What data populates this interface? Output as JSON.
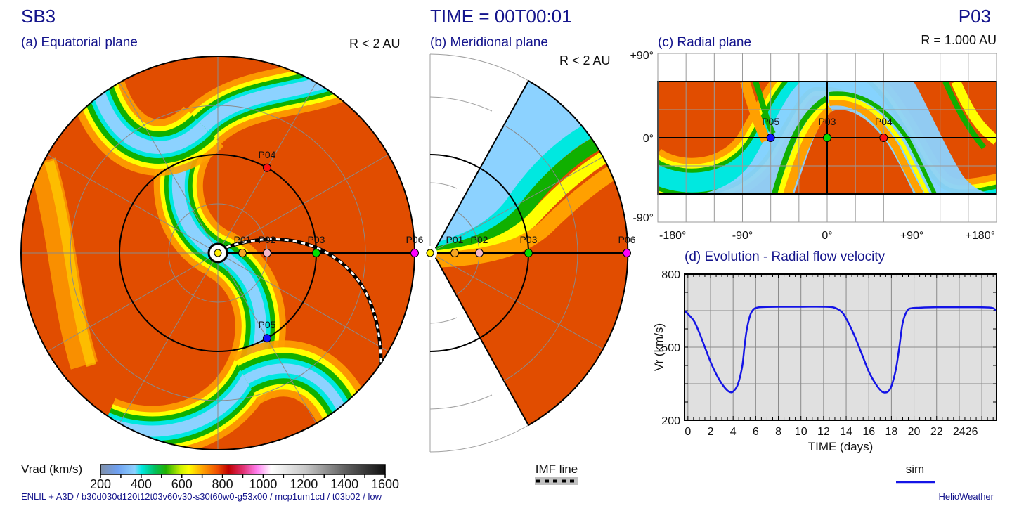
{
  "header": {
    "run_name": "SB3",
    "time_label": "TIME = 00T00:01",
    "probe_name": "P03"
  },
  "panels": {
    "a": {
      "title": "(a) Equatorial plane",
      "range": "R < 2 AU"
    },
    "b": {
      "title": "(b) Meridional plane",
      "range": "R < 2 AU"
    },
    "c": {
      "title": "(c) Radial plane",
      "range": "R = 1.000 AU",
      "lat_ticks": [
        "+90°",
        "0°",
        "-90°"
      ],
      "lon_ticks": [
        "-180°",
        "-90°",
        "0°",
        "+90°",
        "+180°"
      ]
    },
    "d": {
      "title": "(d) Evolution - Radial flow velocity"
    }
  },
  "probes": [
    {
      "id": "P01",
      "color": "#f5a623",
      "r_au": 0.25
    },
    {
      "id": "P02",
      "color": "#f4b8c8",
      "r_au": 0.5
    },
    {
      "id": "P03",
      "color": "#00e000",
      "r_au": 1.0
    },
    {
      "id": "P04",
      "color": "#ff1010",
      "r_au": 1.0
    },
    {
      "id": "P05",
      "color": "#1010ff",
      "r_au": 1.0
    },
    {
      "id": "P06",
      "color": "#ff00ff",
      "r_au": 2.0
    }
  ],
  "radial_plane_probes": [
    {
      "id": "P05",
      "lon": -60,
      "color": "#1010ff"
    },
    {
      "id": "P03",
      "lon": 0,
      "color": "#00e000"
    },
    {
      "id": "P04",
      "lon": 60,
      "color": "#ff1010"
    }
  ],
  "colorbar": {
    "label": "Vrad (km/s)",
    "ticks": [
      "200",
      "400",
      "600",
      "800",
      "1000",
      "1200",
      "1400",
      "1600"
    ],
    "min": 200,
    "max": 1600
  },
  "imf_legend": {
    "label": "IMF line"
  },
  "footer": {
    "run_info": "ENLIL + A3D / b30d030d120t12t03v60v30-s30t60w0-g53x00 / mcp1um1cd / t03b02 / low",
    "credit": "HelioWeather"
  },
  "chart_data": {
    "type": "line",
    "title": "(d) Evolution - Radial flow velocity",
    "xlabel": "TIME (days)",
    "ylabel": "Vr (km/s)",
    "xlim": [
      -0.3,
      27.3
    ],
    "ylim": [
      200,
      800
    ],
    "x_ticks": [
      "0",
      "2",
      "4",
      "6",
      "8",
      "10",
      "12",
      "14",
      "16",
      "18",
      "20",
      "22",
      "2426"
    ],
    "x_tick_values": [
      0,
      2,
      4,
      6,
      8,
      10,
      12,
      14,
      16,
      18,
      20,
      22,
      24
    ],
    "y_ticks": [
      "800",
      "500",
      "200"
    ],
    "y_tick_values": [
      800,
      500,
      200
    ],
    "grid": true,
    "legend": {
      "position": "bottom-right",
      "entries": [
        "sim"
      ]
    },
    "series": [
      {
        "name": "sim",
        "color": "#1414e6",
        "x": [
          -0.3,
          0.5,
          1.0,
          1.5,
          2.0,
          2.5,
          3.0,
          3.5,
          3.8,
          4.0,
          4.4,
          4.8,
          5.0,
          5.2,
          5.5,
          5.8,
          6.2,
          7,
          8,
          10,
          12,
          12.8,
          13.3,
          13.7,
          14.2,
          14.8,
          15.4,
          16.0,
          16.6,
          17.1,
          17.4,
          17.7,
          18.0,
          18.4,
          18.7,
          19.0,
          19.4,
          19.8,
          20.5,
          22,
          24,
          25.5,
          26.5,
          27,
          27.3
        ],
        "y": [
          650,
          610,
          560,
          500,
          440,
          390,
          350,
          322,
          315,
          318,
          345,
          420,
          500,
          570,
          630,
          655,
          663,
          665,
          666,
          666,
          666,
          664,
          655,
          640,
          600,
          540,
          470,
          400,
          350,
          320,
          314,
          318,
          340,
          410,
          500,
          600,
          650,
          660,
          662,
          664,
          664,
          664,
          663,
          660,
          650
        ]
      }
    ]
  }
}
